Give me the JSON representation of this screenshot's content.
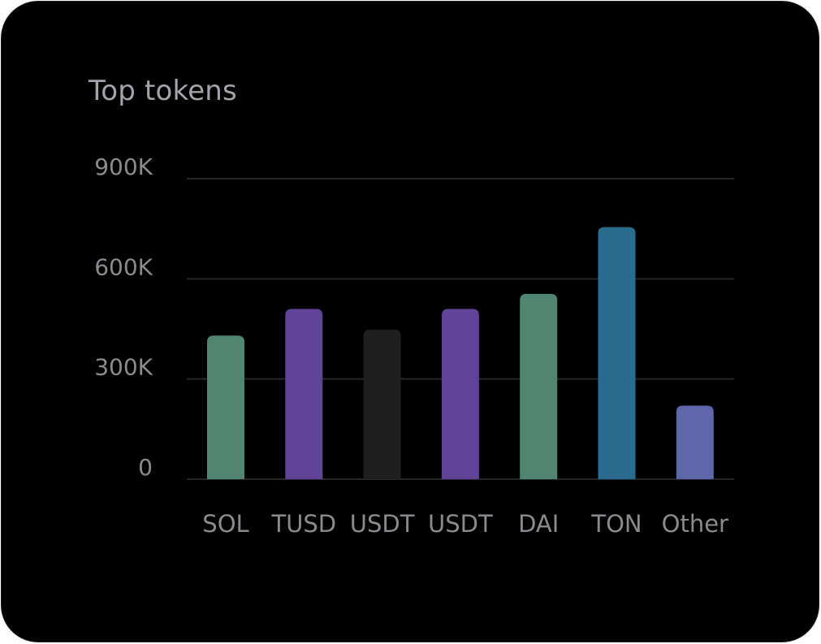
{
  "card": {
    "title": "Top tokens"
  },
  "colors": {
    "background": "#000000",
    "grid": "#262626",
    "text": "#8a8a8f",
    "title": "#a3a3ab"
  },
  "chart_data": {
    "type": "bar",
    "title": "Top tokens",
    "categories": [
      "SOL",
      "TUSD",
      "USDT",
      "USDT",
      "DAI",
      "TON",
      "Other"
    ],
    "values": [
      430000,
      510000,
      448000,
      510000,
      555000,
      755000,
      220000
    ],
    "bar_colors": [
      "#4f8571",
      "#5f4497",
      "#1f1f1f",
      "#5f4497",
      "#4f8571",
      "#2a6b90",
      "#5e66ac"
    ],
    "ylim": [
      0,
      900000
    ],
    "yticks": [
      0,
      300000,
      600000,
      900000
    ],
    "ytick_labels": [
      "0",
      "300K",
      "600K",
      "900K"
    ],
    "xlabel": "",
    "ylabel": "",
    "grid": true
  }
}
